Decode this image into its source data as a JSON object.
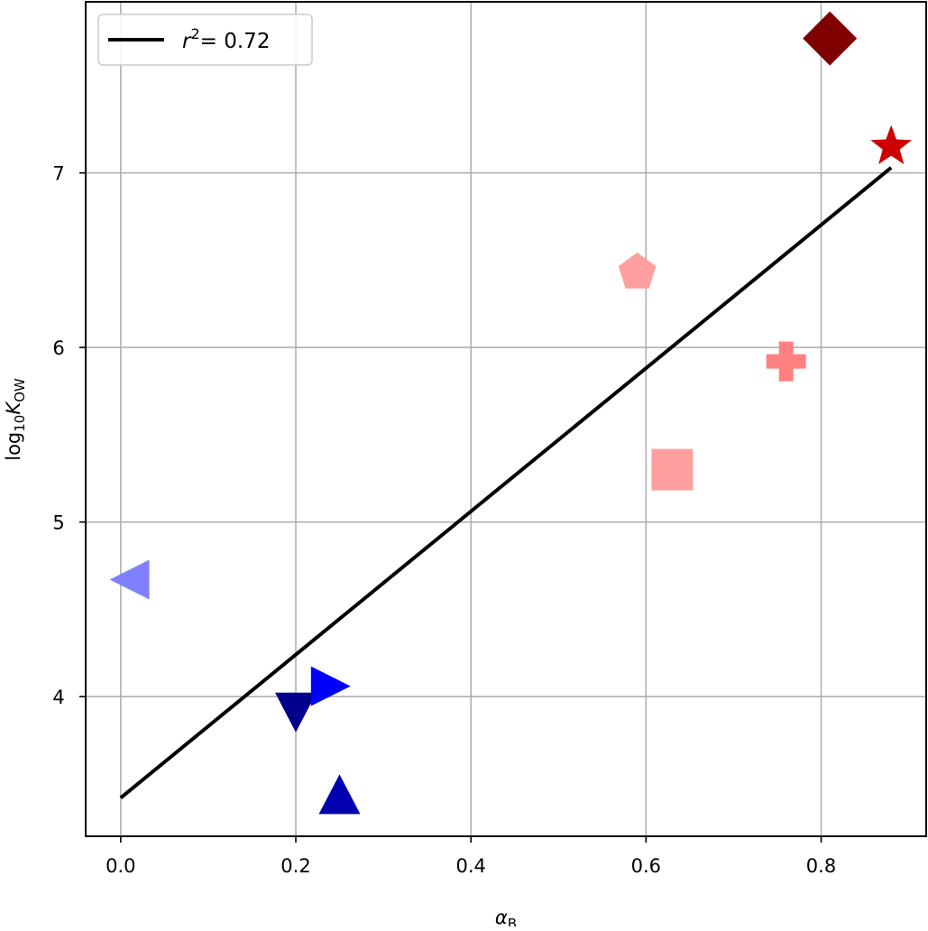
{
  "chart_data": {
    "type": "scatter",
    "xlabel_main": "α",
    "xlabel_sub": "B",
    "ylabel_pre": "log",
    "ylabel_base": "10",
    "ylabel_var": "K",
    "ylabel_sub": "OW",
    "xlim": [
      -0.04,
      0.92
    ],
    "ylim": [
      3.2,
      7.98
    ],
    "xticks": [
      0.0,
      0.2,
      0.4,
      0.6,
      0.8
    ],
    "xtick_labels": [
      "0.0",
      "0.2",
      "0.4",
      "0.6",
      "0.8"
    ],
    "yticks": [
      4,
      5,
      6,
      7
    ],
    "ytick_labels": [
      "4",
      "5",
      "6",
      "7"
    ],
    "grid": true,
    "legend": {
      "placement": "top-left",
      "r_label": "r",
      "r_sup": "2",
      "value_label": "= 0.72"
    },
    "fit_line": {
      "x": [
        0.0,
        0.88
      ],
      "y": [
        3.42,
        7.03
      ],
      "color": "#000000"
    },
    "points": [
      {
        "x": 0.01,
        "y": 4.67,
        "marker": "triangle-left",
        "color": "#8080ff"
      },
      {
        "x": 0.2,
        "y": 3.93,
        "marker": "triangle-down",
        "color": "#00008b"
      },
      {
        "x": 0.24,
        "y": 4.06,
        "marker": "triangle-right",
        "color": "#0000ff"
      },
      {
        "x": 0.25,
        "y": 3.42,
        "marker": "triangle-up",
        "color": "#0000b0"
      },
      {
        "x": 0.59,
        "y": 6.43,
        "marker": "pentagon",
        "color": "#ff9f9f"
      },
      {
        "x": 0.63,
        "y": 5.3,
        "marker": "square",
        "color": "#ff9f9f"
      },
      {
        "x": 0.76,
        "y": 5.92,
        "marker": "plus",
        "color": "#ff8080"
      },
      {
        "x": 0.81,
        "y": 7.77,
        "marker": "diamond",
        "color": "#800000"
      },
      {
        "x": 0.88,
        "y": 7.15,
        "marker": "star",
        "color": "#cc0000"
      }
    ]
  }
}
